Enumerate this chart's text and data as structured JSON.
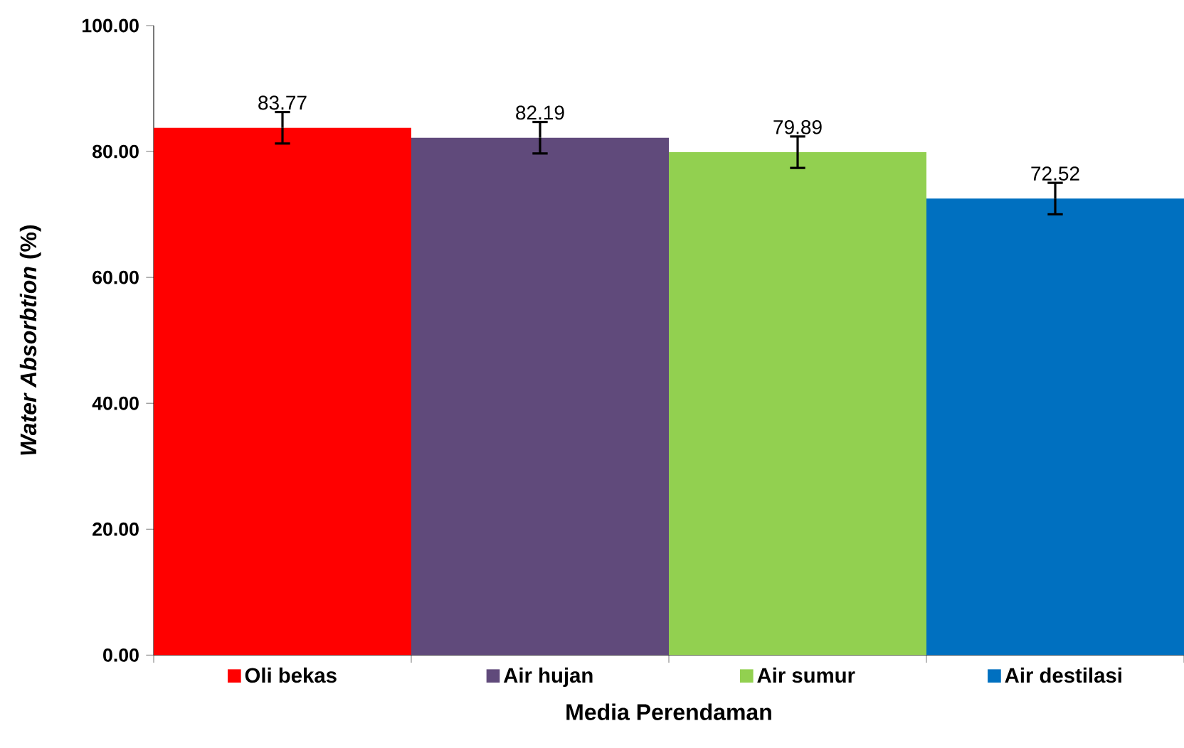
{
  "chart_data": {
    "type": "bar",
    "xlabel": "Media Perendaman",
    "ylabel": "*Water Absorbtion* (%)",
    "categories": [
      "Oli bekas",
      "Air hujan",
      "Air sumur",
      "Air destilasi"
    ],
    "values": [
      83.77,
      82.19,
      79.89,
      72.52
    ],
    "colors": [
      "#ff0000",
      "#604a7b",
      "#92d050",
      "#0070c0"
    ],
    "errors": [
      2.5,
      2.5,
      2.5,
      2.5
    ],
    "data_labels": true,
    "ylim": [
      0,
      100
    ],
    "yticks": [
      {
        "value": 0,
        "label": "0.00"
      },
      {
        "value": 20,
        "label": "20.00"
      },
      {
        "value": 40,
        "label": "40.00"
      },
      {
        "value": 60,
        "label": "60.00"
      },
      {
        "value": 80,
        "label": "80.00"
      },
      {
        "value": 100,
        "label": "100.00"
      }
    ]
  }
}
